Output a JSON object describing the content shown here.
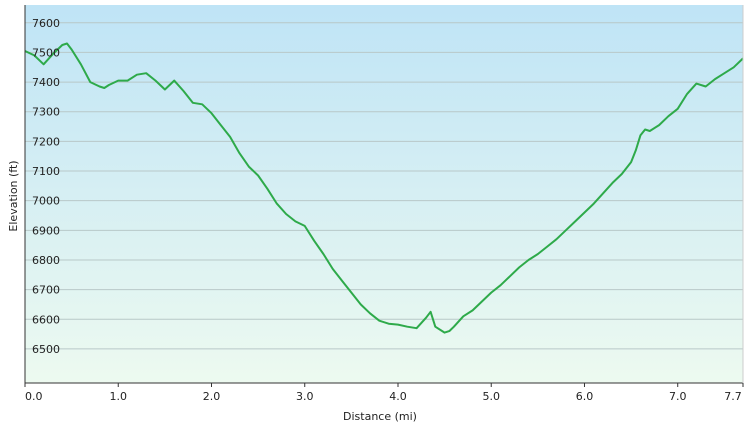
{
  "chart_data": {
    "type": "area",
    "xlabel": "Distance  (mi)",
    "ylabel": "Elevation (ft)",
    "x_ticks": [
      0.0,
      1.0,
      2.0,
      3.0,
      4.0,
      5.0,
      6.0,
      7.0,
      7.7
    ],
    "x_tick_labels": [
      "0.0",
      "1.0",
      "2.0",
      "3.0",
      "4.0",
      "5.0",
      "6.0",
      "7.0",
      "7.7"
    ],
    "y_ticks": [
      6500,
      6600,
      6700,
      6800,
      6900,
      7000,
      7100,
      7200,
      7300,
      7400,
      7500,
      7600
    ],
    "y_tick_labels": [
      "6500",
      "6600",
      "6700",
      "6800",
      "6900",
      "7000",
      "7100",
      "7200",
      "7300",
      "7400",
      "7500",
      "7600"
    ],
    "xlim": [
      0,
      7.7
    ],
    "ylim": [
      6385,
      7660
    ],
    "grid": true,
    "legend": false,
    "colors": {
      "line": "#2eaa4a",
      "fill_top": "#bfe4f6",
      "fill_bottom": "#edfaf0",
      "grid": "#b8c8c8"
    },
    "series": [
      {
        "x": [
          0.0,
          0.1,
          0.2,
          0.3,
          0.4,
          0.45,
          0.5,
          0.6,
          0.7,
          0.8,
          0.85,
          0.9,
          1.0,
          1.1,
          1.2,
          1.3,
          1.4,
          1.5,
          1.6,
          1.7,
          1.8,
          1.9,
          2.0,
          2.1,
          2.2,
          2.3,
          2.4,
          2.5,
          2.6,
          2.7,
          2.8,
          2.9,
          3.0,
          3.1,
          3.2,
          3.3,
          3.4,
          3.5,
          3.6,
          3.7,
          3.8,
          3.9,
          4.0,
          4.1,
          4.2,
          4.3,
          4.35,
          4.4,
          4.5,
          4.55,
          4.6,
          4.7,
          4.8,
          4.9,
          5.0,
          5.1,
          5.2,
          5.3,
          5.4,
          5.5,
          5.6,
          5.7,
          5.8,
          5.9,
          6.0,
          6.1,
          6.2,
          6.3,
          6.4,
          6.5,
          6.55,
          6.6,
          6.65,
          6.7,
          6.8,
          6.9,
          7.0,
          7.1,
          7.2,
          7.3,
          7.4,
          7.5,
          7.6,
          7.7
        ],
        "y": [
          7505,
          7490,
          7460,
          7495,
          7525,
          7530,
          7510,
          7460,
          7400,
          7385,
          7380,
          7390,
          7405,
          7405,
          7425,
          7430,
          7405,
          7375,
          7405,
          7370,
          7330,
          7325,
          7295,
          7255,
          7215,
          7160,
          7115,
          7085,
          7040,
          6990,
          6955,
          6930,
          6915,
          6865,
          6820,
          6770,
          6730,
          6690,
          6650,
          6620,
          6595,
          6585,
          6582,
          6575,
          6570,
          6605,
          6625,
          6575,
          6555,
          6560,
          6575,
          6610,
          6630,
          6660,
          6690,
          6715,
          6745,
          6775,
          6800,
          6820,
          6845,
          6870,
          6900,
          6930,
          6960,
          6990,
          7025,
          7060,
          7090,
          7130,
          7170,
          7220,
          7240,
          7235,
          7255,
          7285,
          7310,
          7360,
          7395,
          7385,
          7410,
          7430,
          7450,
          7480
        ]
      }
    ]
  }
}
